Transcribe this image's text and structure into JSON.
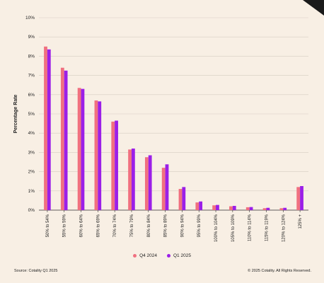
{
  "chart_data": {
    "type": "bar",
    "ylabel": "Percentage Rate",
    "ylim": [
      0,
      10
    ],
    "yticks": [
      "0%",
      "1%",
      "2%",
      "3%",
      "4%",
      "5%",
      "6%",
      "7%",
      "8%",
      "9%",
      "10%"
    ],
    "grid": true,
    "categories": [
      "50% to 54%",
      "55% to 59%",
      "60% to 64%",
      "65% to 69%",
      "70% to 74%",
      "75% to 79%",
      "80% to 84%",
      "85% to 89%",
      "90% to 94%",
      "95% to 99%",
      "100% to 104%",
      "105% to 109%",
      "110% to 114%",
      "115% to 119%",
      "120% to 124%",
      "125% +"
    ],
    "series": [
      {
        "name": "Q4 2024",
        "color": "#f07080",
        "values": [
          8.5,
          7.4,
          6.35,
          5.7,
          4.6,
          3.15,
          2.75,
          2.2,
          1.1,
          0.4,
          0.25,
          0.2,
          0.15,
          0.1,
          0.1,
          1.2
        ]
      },
      {
        "name": "Q1 2025",
        "color": "#9b1fe8",
        "values": [
          8.35,
          7.25,
          6.3,
          5.65,
          4.65,
          3.2,
          2.85,
          2.38,
          1.2,
          0.45,
          0.27,
          0.22,
          0.16,
          0.12,
          0.12,
          1.25
        ]
      }
    ],
    "legend_position": "bottom"
  },
  "footer": {
    "source": "Source: Cotality Q1 2025",
    "copyright": "© 2025 Cotality. All Rights Reserved."
  },
  "colors": {
    "background": "#f8efe4",
    "grid": "#d6cdc2",
    "axis": "#333333"
  }
}
